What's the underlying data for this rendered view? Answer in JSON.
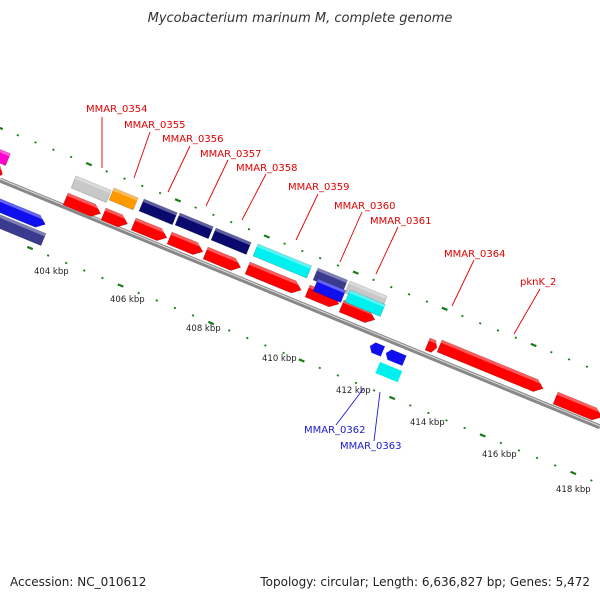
{
  "title": "Mycobacterium marinum M, complete genome",
  "footer": {
    "accession": "Accession: NC_010612",
    "summary": "Topology: circular; Length: 6,636,827 bp; Genes: 5,472"
  },
  "colors": {
    "backbone": "#888888",
    "tick_mark": "#1a7a1a",
    "label_red": "#e00000",
    "label_blue": "#1a1ad0",
    "cds_red": "#ff0000",
    "navy": "#0a0a6e",
    "cyan": "#00f0f0",
    "blue": "#1010ee",
    "slate": "#3a3a8e",
    "grey": "#c8c8c8",
    "orange": "#ff9900",
    "magenta": "#ff00cc"
  },
  "scale": {
    "unit": "kbp",
    "ticks": [
      {
        "label": "404 kbp"
      },
      {
        "label": "406 kbp"
      },
      {
        "label": "408 kbp"
      },
      {
        "label": "410 kbp"
      },
      {
        "label": "412 kbp"
      },
      {
        "label": "414 kbp"
      },
      {
        "label": "416 kbp"
      },
      {
        "label": "418 kbp"
      }
    ]
  },
  "gene_labels": [
    {
      "text": "MMAR_0354",
      "color": "label_red"
    },
    {
      "text": "MMAR_0355",
      "color": "label_red"
    },
    {
      "text": "MMAR_0356",
      "color": "label_red"
    },
    {
      "text": "MMAR_0357",
      "color": "label_red"
    },
    {
      "text": "MMAR_0358",
      "color": "label_red"
    },
    {
      "text": "MMAR_0359",
      "color": "label_red"
    },
    {
      "text": "MMAR_0360",
      "color": "label_red"
    },
    {
      "text": "MMAR_0361",
      "color": "label_red"
    },
    {
      "text": "MMAR_0364",
      "color": "label_red"
    },
    {
      "text": "pknK_2",
      "color": "label_red"
    },
    {
      "text": "MMAR_0362",
      "color": "label_blue"
    },
    {
      "text": "MMAR_0363",
      "color": "label_blue"
    }
  ]
}
